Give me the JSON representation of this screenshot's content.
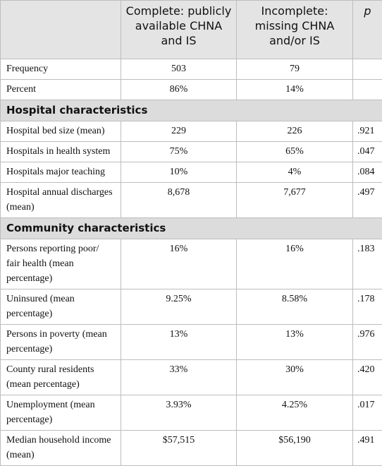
{
  "table": {
    "header": [
      "Complete: publicly available CHNA and IS",
      "Incomplete: missing CHNA and/or IS",
      "p"
    ],
    "rows": [
      [
        "Frequency",
        "503",
        "79"
      ],
      [
        "Percent",
        "86%",
        "14%"
      ],
      [
        "Hospital characteristics"
      ],
      [
        "Hospital bed size (mean)",
        "229",
        "226",
        ".921"
      ],
      [
        "Hospitals in health system",
        "75%",
        "65%",
        ".047"
      ],
      [
        "Hospitals major teaching",
        "10%",
        "4%",
        ".084"
      ],
      [
        "Hospital annual discharges (mean)",
        "8,678",
        "7,677",
        ".497"
      ],
      [
        "Community characteristics"
      ],
      [
        "Persons reporting poor/ fair health (mean percentage)",
        "16%",
        "16%",
        ".183"
      ],
      [
        "Uninsured (mean percentage)",
        "9.25%",
        "8.58%",
        ".178"
      ],
      [
        "Persons in poverty (mean percentage)",
        "13%",
        "13%",
        ".976"
      ],
      [
        "County rural residents (mean percentage)",
        "33%",
        "30%",
        ".420"
      ],
      [
        "Unemployment (mean percentage)",
        "3.93%",
        "4.25%",
        ".017"
      ],
      [
        "Median household income (mean)",
        "$57,515",
        "$56,190",
        ".491"
      ]
    ]
  }
}
